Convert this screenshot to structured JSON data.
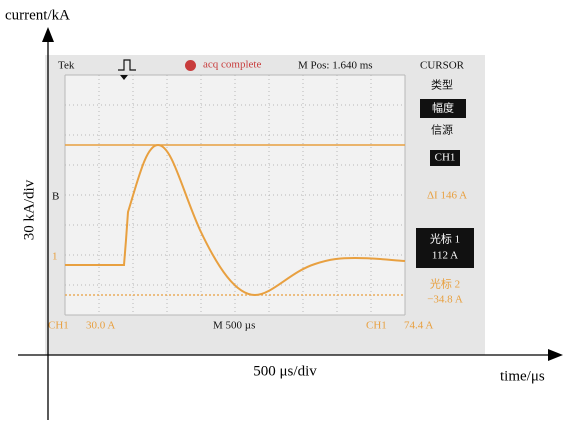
{
  "axes": {
    "y_label": "current/kA",
    "y_scale": "30 kA/div",
    "x_scale": "500 μs/div",
    "x_label": "time/μs"
  },
  "screen": {
    "brand": "Tek",
    "status": "acq complete",
    "position": "M Pos: 1.640 ms",
    "markers": {
      "b": "B",
      "ch1": "1"
    },
    "bottom": {
      "ch1_label": "CH1",
      "ch1_scale": "30.0 A",
      "timebase": "M 500 µs",
      "trigger_label": "CH1",
      "trigger_level": "74.4 A"
    }
  },
  "menu": {
    "title": "CURSOR",
    "type_label": "类型",
    "type_value": "幅度",
    "source_label": "信源",
    "source_value": "CH1",
    "delta": "ΔI 146 A",
    "cursor1_label": "光标 1",
    "cursor1_value": "112 A",
    "cursor2_label": "光标 2",
    "cursor2_value": "−34.8 A"
  }
}
